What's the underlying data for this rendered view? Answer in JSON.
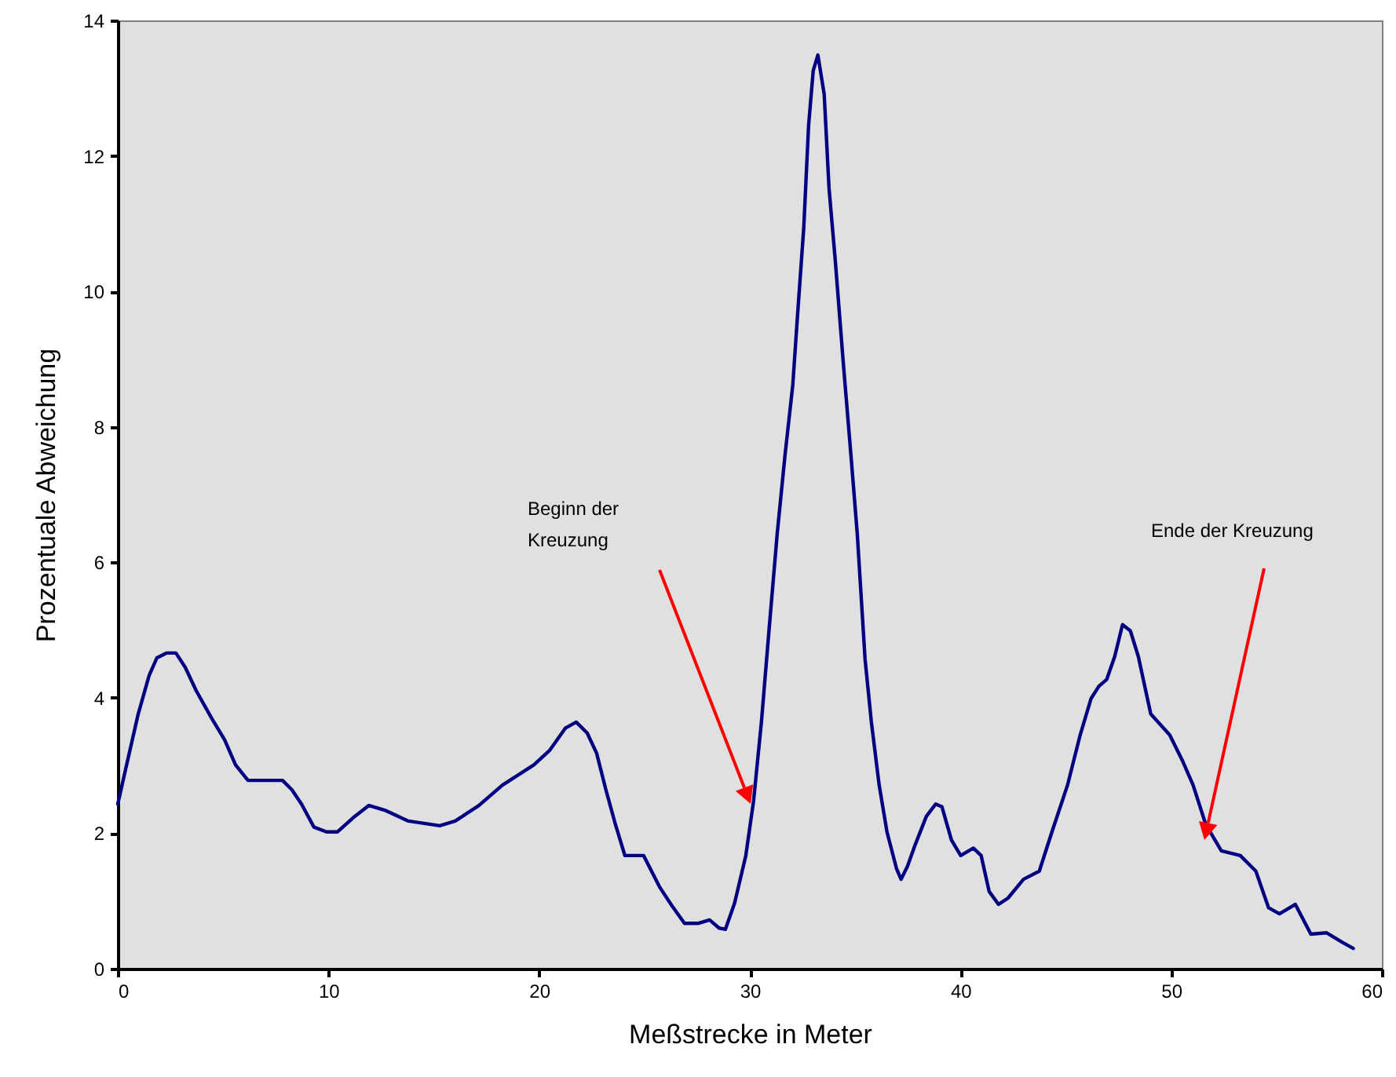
{
  "chart_data": {
    "type": "line",
    "xlabel": "Meßstrecke in Meter",
    "ylabel": "Prozentuale Abweichung",
    "xlim": [
      0,
      60
    ],
    "xticks": [
      0,
      10,
      20,
      30,
      40,
      50,
      60
    ],
    "ylim": [
      0,
      14
    ],
    "yticks": [
      0,
      2,
      4,
      6,
      8,
      10,
      12,
      14
    ],
    "grid": false,
    "marker": "none",
    "line_style": "solid",
    "series": [
      {
        "color": "#000080",
        "x": [
          0,
          0.37,
          0.97,
          1.49,
          1.86,
          2.31,
          2.76,
          3.2,
          3.73,
          4.47,
          5.07,
          5.59,
          6.18,
          6.71,
          7.82,
          8.27,
          8.72,
          9.31,
          9.91,
          10.43,
          11.18,
          11.92,
          12.67,
          13.79,
          15.28,
          16.02,
          17.14,
          18.26,
          19.75,
          20.49,
          21.24,
          21.76,
          22.28,
          22.73,
          23.17,
          23.62,
          24.07,
          24.59,
          24.96,
          25.71,
          26.3,
          26.9,
          27.57,
          28.09,
          28.54,
          28.84,
          29.28,
          29.81,
          30.18,
          30.55,
          30.92,
          31.3,
          31.67,
          32.04,
          32.27,
          32.56,
          32.79,
          33.01,
          33.23,
          33.53,
          33.76,
          34.05,
          34.43,
          34.8,
          35.1,
          35.47,
          35.77,
          36.14,
          36.51,
          36.96,
          37.18,
          37.48,
          37.85,
          38.38,
          38.82,
          39.12,
          39.57,
          40.01,
          40.61,
          40.98,
          41.36,
          41.8,
          42.25,
          42.99,
          43.74,
          44.34,
          45.08,
          45.68,
          46.2,
          46.57,
          46.94,
          47.32,
          47.69,
          48.06,
          48.44,
          49.03,
          49.93,
          50.52,
          51.04,
          51.64,
          52.38,
          53.28,
          54.02,
          54.62,
          55.14,
          55.89,
          56.63,
          57.38,
          58.12,
          58.64
        ],
        "values": [
          2.43,
          2.94,
          3.76,
          4.33,
          4.59,
          4.66,
          4.66,
          4.45,
          4.1,
          3.69,
          3.38,
          3.01,
          2.78,
          2.78,
          2.78,
          2.64,
          2.43,
          2.09,
          2.02,
          2.02,
          2.23,
          2.41,
          2.34,
          2.18,
          2.11,
          2.18,
          2.41,
          2.71,
          3.01,
          3.22,
          3.55,
          3.64,
          3.48,
          3.18,
          2.64,
          2.13,
          1.67,
          1.67,
          1.67,
          1.21,
          0.93,
          0.67,
          0.67,
          0.72,
          0.6,
          0.58,
          0.97,
          1.67,
          2.48,
          3.64,
          5.03,
          6.42,
          7.58,
          8.62,
          9.67,
          10.94,
          12.45,
          13.26,
          13.49,
          12.91,
          11.52,
          10.48,
          8.97,
          7.58,
          6.42,
          4.57,
          3.64,
          2.71,
          2.02,
          1.48,
          1.32,
          1.51,
          1.83,
          2.25,
          2.43,
          2.39,
          1.9,
          1.67,
          1.78,
          1.67,
          1.14,
          0.95,
          1.04,
          1.32,
          1.44,
          2.02,
          2.71,
          3.45,
          3.99,
          4.17,
          4.27,
          4.61,
          5.08,
          4.99,
          4.61,
          3.76,
          3.45,
          3.08,
          2.71,
          2.13,
          1.74,
          1.67,
          1.44,
          0.9,
          0.81,
          0.95,
          0.51,
          0.53,
          0.39,
          0.3
        ]
      }
    ],
    "annotations": [
      "Beginn der\nKreuzung",
      "Ende der Kreuzung"
    ]
  }
}
